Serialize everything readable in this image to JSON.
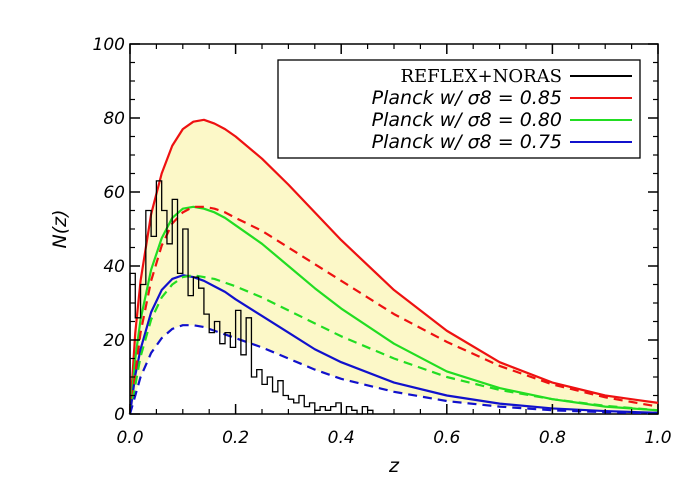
{
  "chart_data": {
    "type": "line",
    "xlabel": "z",
    "ylabel": "N(z)",
    "xlim": [
      0.0,
      1.0
    ],
    "ylim": [
      0,
      100
    ],
    "x_ticks": [
      "0.0",
      "0.2",
      "0.4",
      "0.6",
      "0.8",
      "1.0"
    ],
    "y_ticks": [
      "0",
      "20",
      "40",
      "60",
      "80",
      "100"
    ],
    "legend_position": "top-right",
    "colors": {
      "observed": "#000000",
      "sigma8_085": "#ee1111",
      "sigma8_080": "#22dd22",
      "sigma8_075": "#1111cc",
      "band_fill": "#fcf8c8"
    },
    "shaded_band": {
      "lower_series": "Planck w/ σ8 = 0.75 (dashed)",
      "upper_series": "Planck w/ σ8 = 0.85"
    },
    "series": [
      {
        "name": "REFLEX+NORAS",
        "kind": "histogram",
        "bin_width": 0.01,
        "x_start": 0.0,
        "values": [
          38,
          26,
          35,
          55,
          48,
          63,
          55,
          46,
          58,
          38,
          50,
          32,
          37,
          34,
          27,
          22,
          25,
          19,
          22,
          18,
          28,
          16,
          26,
          10,
          12,
          8,
          10,
          6,
          9,
          5,
          4,
          3,
          5,
          2,
          3,
          1,
          2,
          1,
          2,
          3,
          0,
          2,
          1,
          0,
          2,
          1
        ]
      },
      {
        "name": "Planck w/ σ8 = 0.85",
        "style": "solid",
        "x": [
          0.0,
          0.01,
          0.02,
          0.04,
          0.06,
          0.08,
          0.1,
          0.12,
          0.14,
          0.16,
          0.18,
          0.2,
          0.25,
          0.3,
          0.35,
          0.4,
          0.5,
          0.6,
          0.7,
          0.8,
          0.9,
          1.0
        ],
        "y": [
          0,
          22,
          36,
          54,
          65,
          72.5,
          77,
          79,
          79.5,
          78.5,
          77,
          75,
          69,
          62,
          54.5,
          47,
          33.5,
          22.5,
          14,
          8.5,
          5,
          3
        ]
      },
      {
        "name": "Planck w/ σ8 = 0.80",
        "style": "solid",
        "x": [
          0.0,
          0.01,
          0.02,
          0.04,
          0.06,
          0.08,
          0.1,
          0.12,
          0.14,
          0.16,
          0.18,
          0.2,
          0.25,
          0.3,
          0.35,
          0.4,
          0.5,
          0.6,
          0.7,
          0.8,
          0.9,
          1.0
        ],
        "y": [
          0,
          15,
          25.5,
          39,
          47.5,
          53,
          55.5,
          56,
          55.5,
          54.5,
          53,
          51,
          46,
          40,
          34,
          28.5,
          19,
          11.5,
          7,
          4,
          2,
          1
        ]
      },
      {
        "name": "Planck w/ σ8 = 0.75",
        "style": "solid",
        "x": [
          0.0,
          0.01,
          0.02,
          0.04,
          0.06,
          0.08,
          0.1,
          0.12,
          0.14,
          0.16,
          0.18,
          0.2,
          0.25,
          0.3,
          0.35,
          0.4,
          0.5,
          0.6,
          0.7,
          0.8,
          0.9,
          1.0
        ],
        "y": [
          0,
          10.5,
          17.5,
          27.5,
          33.5,
          36.5,
          37.5,
          37,
          36,
          34.5,
          33,
          31,
          26.5,
          22,
          17.5,
          14,
          8.5,
          5,
          2.8,
          1.5,
          0.8,
          0.3
        ]
      },
      {
        "name": "Planck w/ σ8 = 0.85 (dashed)",
        "style": "dashed",
        "x": [
          0.0,
          0.02,
          0.04,
          0.06,
          0.08,
          0.1,
          0.12,
          0.14,
          0.16,
          0.18,
          0.2,
          0.25,
          0.3,
          0.35,
          0.4,
          0.5,
          0.6,
          0.7,
          0.8,
          0.9,
          1.0
        ],
        "y": [
          0,
          22,
          36,
          45.5,
          51.5,
          54.5,
          56,
          56,
          55.5,
          54.5,
          53,
          49.5,
          45,
          40.5,
          36,
          27,
          19.5,
          13,
          8,
          4.5,
          2
        ]
      },
      {
        "name": "Planck w/ σ8 = 0.80 (dashed)",
        "style": "dashed",
        "x": [
          0.0,
          0.02,
          0.04,
          0.06,
          0.08,
          0.1,
          0.12,
          0.14,
          0.16,
          0.18,
          0.2,
          0.25,
          0.3,
          0.35,
          0.4,
          0.5,
          0.6,
          0.7,
          0.8,
          0.9,
          1.0
        ],
        "y": [
          0,
          15.5,
          25.5,
          31.5,
          35,
          37,
          37.5,
          37,
          36.5,
          35.5,
          34.5,
          31.5,
          28,
          24.5,
          21,
          15,
          10,
          6.5,
          4,
          2.2,
          1
        ]
      },
      {
        "name": "Planck w/ σ8 = 0.75 (dashed)",
        "style": "dashed",
        "x": [
          0.0,
          0.02,
          0.04,
          0.06,
          0.08,
          0.1,
          0.12,
          0.14,
          0.16,
          0.18,
          0.2,
          0.25,
          0.3,
          0.35,
          0.4,
          0.5,
          0.6,
          0.7,
          0.8,
          0.9,
          1.0
        ],
        "y": [
          0,
          10,
          16.5,
          20.5,
          23,
          24,
          24,
          23.5,
          22.5,
          21.5,
          20.5,
          18,
          15,
          12,
          9.5,
          6,
          3.5,
          2,
          1,
          0.5,
          0.2
        ]
      }
    ],
    "legend": [
      {
        "label": "REFLEX+NORAS",
        "series": 0,
        "style": "upright"
      },
      {
        "label": "Planck w/ σ8 = 0.85",
        "series": 1,
        "style": "italic"
      },
      {
        "label": "Planck w/ σ8 = 0.80",
        "series": 2,
        "style": "italic"
      },
      {
        "label": "Planck w/ σ8 = 0.75",
        "series": 3,
        "style": "italic"
      }
    ]
  }
}
